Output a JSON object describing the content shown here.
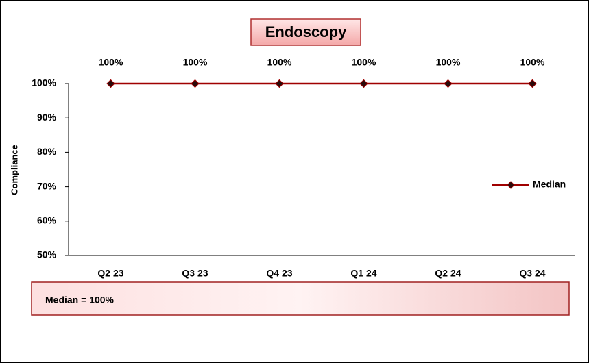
{
  "chart_data": {
    "type": "line",
    "title": "Endoscopy",
    "y_label": "Compliance",
    "categories": [
      "Q2 23",
      "Q3 23",
      "Q4 23",
      "Q1 24",
      "Q2 24",
      "Q3 24"
    ],
    "series": [
      {
        "name": "Median",
        "color": "#a00000",
        "marker": "diamond",
        "values": [
          100,
          100,
          100,
          100,
          100,
          100
        ],
        "value_labels": [
          "100%",
          "100%",
          "100%",
          "100%",
          "100%",
          "100%"
        ]
      }
    ],
    "ylim": [
      50,
      100
    ],
    "yticks": [
      {
        "value": 50,
        "label": "50%"
      },
      {
        "value": 60,
        "label": "60%"
      },
      {
        "value": 70,
        "label": "70%"
      },
      {
        "value": 80,
        "label": "80%"
      },
      {
        "value": 90,
        "label": "90%"
      },
      {
        "value": 100,
        "label": "100%"
      }
    ],
    "legend": "right",
    "annotation": "Median = 100%"
  }
}
